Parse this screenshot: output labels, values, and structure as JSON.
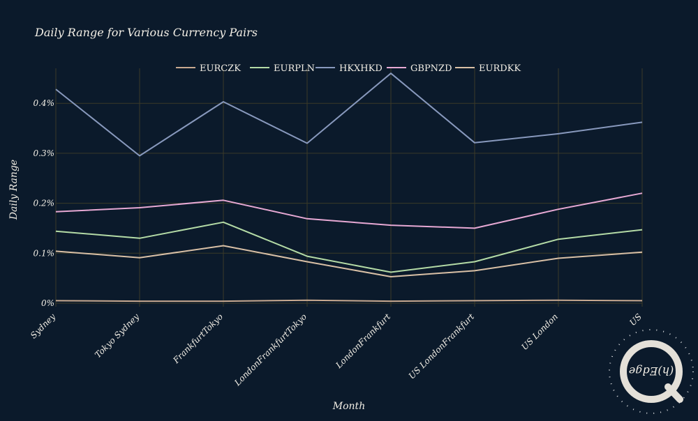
{
  "chart_data": {
    "type": "line",
    "title": "Daily Range for Various Currency Pairs",
    "xlabel": "Month",
    "ylabel": "Daily Range",
    "categories": [
      "Sydney",
      "Tokyo Sydney",
      "FrankfurtTokyo",
      "LondonFrankfurtTokyo",
      "LondonFrankfurt",
      "US LondonFrankfurt",
      "US London",
      "US"
    ],
    "y_ticks": [
      0,
      0.1,
      0.2,
      0.3,
      0.4
    ],
    "y_tick_labels": [
      "0%",
      "0.1%",
      "0.2%",
      "0.3%",
      "0.4%"
    ],
    "ylim": [
      -0.007,
      0.47
    ],
    "grid": true,
    "legend_position": "top-center",
    "series": [
      {
        "name": "EURCZK",
        "color": "#c8a990",
        "values": [
          0.005,
          0.004,
          0.004,
          0.006,
          0.004,
          0.005,
          0.006,
          0.005
        ]
      },
      {
        "name": "EURPLN",
        "color": "#b4dba6",
        "values": [
          0.144,
          0.13,
          0.162,
          0.094,
          0.062,
          0.083,
          0.128,
          0.147
        ]
      },
      {
        "name": "HKXHKD",
        "color": "#8899bd",
        "values": [
          0.428,
          0.295,
          0.403,
          0.32,
          0.46,
          0.321,
          0.339,
          0.362
        ]
      },
      {
        "name": "GBPNZD",
        "color": "#e7a9d4",
        "values": [
          0.183,
          0.191,
          0.206,
          0.169,
          0.156,
          0.15,
          0.188,
          0.22
        ]
      },
      {
        "name": "EURDKK",
        "color": "#d9c0a6",
        "values": [
          0.104,
          0.091,
          0.115,
          0.083,
          0.053,
          0.065,
          0.09,
          0.102
        ]
      }
    ]
  },
  "watermark": {
    "text": "(h)Edge"
  },
  "colors": {
    "background": "#0b1a2b",
    "grid": "#3b3a28",
    "text": "#f3efe6"
  }
}
